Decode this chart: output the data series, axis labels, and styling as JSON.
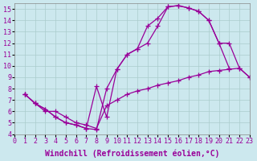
{
  "xlabel": "Windchill (Refroidissement éolien,°C)",
  "bg_color": "#cce8ee",
  "grid_color": "#aacccc",
  "line_color": "#990099",
  "xlim": [
    0,
    23
  ],
  "ylim": [
    4,
    15.5
  ],
  "xticks": [
    0,
    1,
    2,
    3,
    4,
    5,
    6,
    7,
    8,
    9,
    10,
    11,
    12,
    13,
    14,
    15,
    16,
    17,
    18,
    19,
    20,
    21,
    22,
    23
  ],
  "yticks": [
    4,
    5,
    6,
    7,
    8,
    9,
    10,
    11,
    12,
    13,
    14,
    15
  ],
  "series": {
    "line1_x": [
      1,
      2,
      3,
      4,
      5,
      6,
      7,
      8,
      9,
      10,
      11,
      12,
      13,
      14,
      15,
      16,
      17,
      18,
      19,
      20,
      21,
      22,
      23
    ],
    "line1_y": [
      7.5,
      6.7,
      6.2,
      5.5,
      5.0,
      4.8,
      4.5,
      4.4,
      8.0,
      9.7,
      11.0,
      11.5,
      12.0,
      13.5,
      15.2,
      15.3,
      15.1,
      14.8,
      14.0,
      12.0,
      12.0,
      9.8,
      9.0
    ],
    "line2_x": [
      1,
      2,
      3,
      4,
      5,
      6,
      7,
      8,
      9,
      10,
      11,
      12,
      13,
      14,
      15,
      16,
      17,
      18,
      19,
      20,
      21,
      22,
      23
    ],
    "line2_y": [
      7.5,
      6.7,
      6.2,
      5.5,
      5.0,
      4.8,
      4.5,
      8.2,
      5.5,
      9.7,
      11.0,
      11.5,
      13.5,
      14.2,
      15.2,
      15.3,
      15.1,
      14.8,
      14.0,
      12.0,
      9.8,
      null,
      null
    ],
    "line3_x": [
      1,
      2,
      3,
      4,
      5,
      6,
      7,
      8,
      9,
      10,
      11,
      12,
      13,
      14,
      15,
      16,
      17,
      18,
      19,
      20,
      21,
      22,
      23
    ],
    "line3_y": [
      7.5,
      6.7,
      6.0,
      6.0,
      5.5,
      5.0,
      4.8,
      4.5,
      6.5,
      7.0,
      7.5,
      7.8,
      8.0,
      8.3,
      8.5,
      8.7,
      9.0,
      9.2,
      9.5,
      9.6,
      9.7,
      9.8,
      9.0
    ]
  },
  "marker": "+",
  "markersize": 4,
  "linewidth": 0.9,
  "tick_fontsize": 6,
  "label_fontsize": 7
}
